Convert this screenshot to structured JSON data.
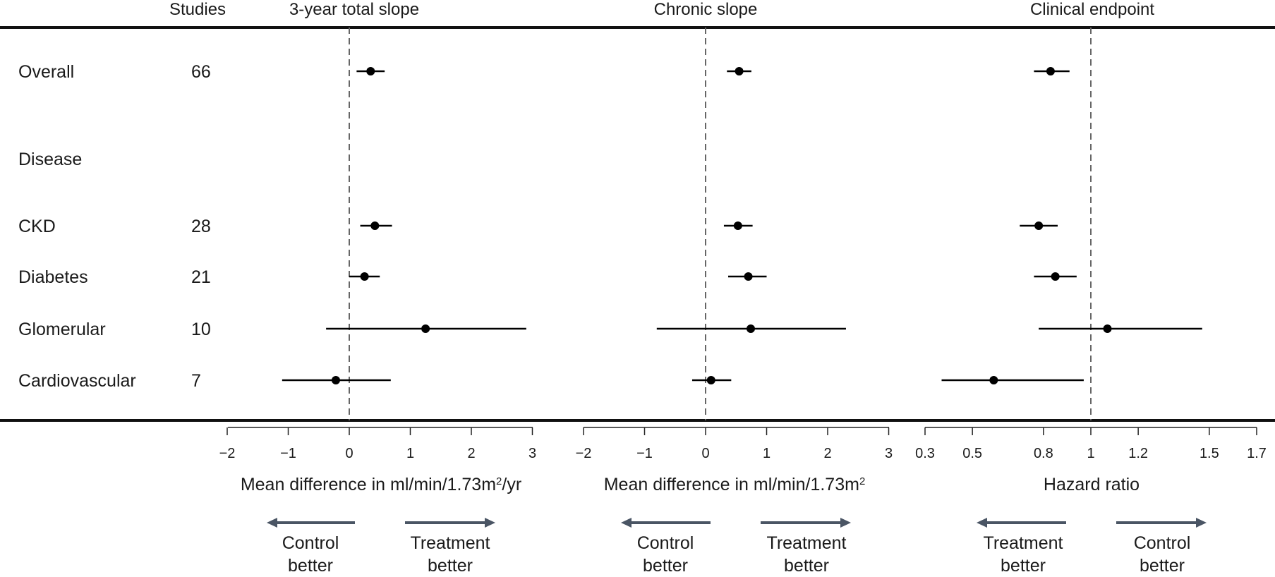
{
  "header": {
    "studies": "Studies"
  },
  "rows": [
    {
      "label": "Overall",
      "studies": "66"
    },
    {
      "label": "Disease",
      "studies": ""
    },
    {
      "label": "CKD",
      "studies": "28"
    },
    {
      "label": "Diabetes",
      "studies": "21"
    },
    {
      "label": "Glomerular",
      "studies": "10"
    },
    {
      "label": "Cardiovascular",
      "studies": "7"
    }
  ],
  "chart_data": [
    {
      "type": "scatter",
      "title": "3-year total slope",
      "xlabel": "Mean difference in ml/min/1.73m²/yr",
      "xlim": [
        -2,
        3
      ],
      "ticks": [
        -2,
        -1,
        0,
        1,
        2,
        3
      ],
      "tick_labels": [
        "−2",
        "−1",
        "0",
        "1",
        "2",
        "3"
      ],
      "reference": 0,
      "categories": [
        "Overall",
        "CKD",
        "Diabetes",
        "Glomerular",
        "Cardiovascular"
      ],
      "estimates": [
        0.35,
        0.42,
        0.25,
        1.25,
        -0.22
      ],
      "ci_low": [
        0.12,
        0.18,
        0.0,
        -0.38,
        -1.1
      ],
      "ci_high": [
        0.58,
        0.7,
        0.5,
        2.9,
        0.68
      ],
      "left_arrow": "Control better",
      "right_arrow": "Treatment better"
    },
    {
      "type": "scatter",
      "title": "Chronic slope",
      "xlabel": "Mean difference in ml/min/1.73m²",
      "xlim": [
        -2,
        3
      ],
      "ticks": [
        -2,
        -1,
        0,
        1,
        2,
        3
      ],
      "tick_labels": [
        "−2",
        "−1",
        "0",
        "1",
        "2",
        "3"
      ],
      "reference": 0,
      "categories": [
        "Overall",
        "CKD",
        "Diabetes",
        "Glomerular",
        "Cardiovascular"
      ],
      "estimates": [
        0.55,
        0.53,
        0.7,
        0.74,
        0.09
      ],
      "ci_low": [
        0.35,
        0.3,
        0.37,
        -0.8,
        -0.22
      ],
      "ci_high": [
        0.75,
        0.77,
        1.0,
        2.3,
        0.42
      ],
      "left_arrow": "Control better",
      "right_arrow": "Treatment better"
    },
    {
      "type": "scatter",
      "title": "Clinical endpoint",
      "xlabel": "Hazard ratio",
      "xlim": [
        0.3,
        1.7
      ],
      "ticks": [
        0.3,
        0.5,
        0.8,
        1,
        1.2,
        1.5,
        1.7
      ],
      "tick_labels": [
        "0.3",
        "0.5",
        "0.8",
        "1",
        "1.2",
        "1.5",
        "1.7"
      ],
      "reference": 1,
      "categories": [
        "Overall",
        "CKD",
        "Diabetes",
        "Glomerular",
        "Cardiovascular"
      ],
      "estimates": [
        0.83,
        0.78,
        0.85,
        1.07,
        0.59
      ],
      "ci_low": [
        0.76,
        0.7,
        0.76,
        0.78,
        0.37
      ],
      "ci_high": [
        0.91,
        0.86,
        0.94,
        1.47,
        0.97
      ],
      "left_arrow": "Treatment better",
      "right_arrow": "Control better"
    }
  ]
}
